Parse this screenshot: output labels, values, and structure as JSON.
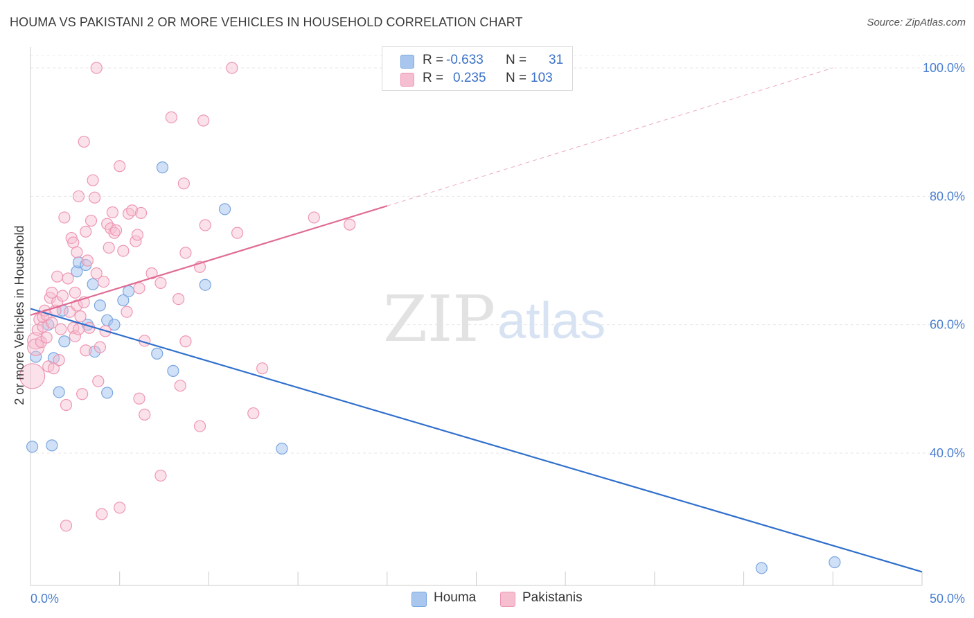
{
  "title": "HOUMA VS PAKISTANI 2 OR MORE VEHICLES IN HOUSEHOLD CORRELATION CHART",
  "source": "Source: ZipAtlas.com",
  "watermark": {
    "zip": "ZIP",
    "atlas": "atlas"
  },
  "legend": {
    "rows": [
      {
        "r_label": "R =",
        "r_value": "-0.633",
        "n_label": "N =",
        "n_value": "31",
        "color": "#a9c7ee",
        "border": "#7aa6e0"
      },
      {
        "r_label": "R =",
        "r_value": "0.235",
        "n_label": "N =",
        "n_value": "103",
        "color": "#f6bfd0",
        "border": "#ee96b2"
      }
    ]
  },
  "bottom_legend": [
    {
      "label": "Houma",
      "color": "#a9c7ee",
      "border": "#7aa6e0"
    },
    {
      "label": "Pakistanis",
      "color": "#f6bfd0",
      "border": "#ee96b2"
    }
  ],
  "chart_data": {
    "type": "scatter",
    "title": "HOUMA VS PAKISTANI 2 OR MORE VEHICLES IN HOUSEHOLD CORRELATION CHART",
    "xlabel": "",
    "ylabel": "2 or more Vehicles in Household",
    "xlim": [
      0,
      50
    ],
    "ylim": [
      20,
      102
    ],
    "x_tick_labels": [
      {
        "value": 0,
        "label": "0.0%"
      },
      {
        "value": 50,
        "label": "50.0%"
      }
    ],
    "y_tick_labels": [
      {
        "value": 100,
        "label": "100.0%"
      },
      {
        "value": 80,
        "label": "80.0%"
      },
      {
        "value": 60,
        "label": "60.0%"
      },
      {
        "value": 40,
        "label": "40.0%"
      }
    ],
    "grid": true,
    "legend_position": "top-center",
    "series": [
      {
        "name": "Houma",
        "color": "#7aa6e0",
        "fill": "#a9c7ee",
        "trend_color": "#2f6fcc",
        "trend": {
          "x1": 0,
          "y1": 62.5,
          "x2": 50,
          "y2": 21.5,
          "dashed_from": null
        },
        "points": [
          [
            0.3,
            55.0
          ],
          [
            0.1,
            41.0
          ],
          [
            1.2,
            41.2
          ],
          [
            1.0,
            60.0
          ],
          [
            1.3,
            54.8
          ],
          [
            1.6,
            49.5
          ],
          [
            1.8,
            62.2
          ],
          [
            1.9,
            57.4
          ],
          [
            2.6,
            68.3
          ],
          [
            2.7,
            69.7
          ],
          [
            3.1,
            69.3
          ],
          [
            3.2,
            60.0
          ],
          [
            3.5,
            66.3
          ],
          [
            3.6,
            55.8
          ],
          [
            3.9,
            63.0
          ],
          [
            4.3,
            49.4
          ],
          [
            4.3,
            60.7
          ],
          [
            4.7,
            60.0
          ],
          [
            5.2,
            63.8
          ],
          [
            5.5,
            65.2
          ],
          [
            7.1,
            55.5
          ],
          [
            7.4,
            84.5
          ],
          [
            8.0,
            52.8
          ],
          [
            9.8,
            66.2
          ],
          [
            10.9,
            78.0
          ],
          [
            14.1,
            40.7
          ],
          [
            41.0,
            22.1
          ],
          [
            45.1,
            23.0
          ]
        ]
      },
      {
        "name": "Pakistanis",
        "color": "#ee96b2",
        "fill": "#f6bfd0",
        "trend_color": "#e06b93",
        "trend": {
          "x1": 0,
          "y1": 61.5,
          "x2": 20,
          "y2": 78.5,
          "dash_x2": 45,
          "dash_y2": 100.0
        },
        "points": [
          [
            0.1,
            52.0
          ],
          [
            0.3,
            57.5
          ],
          [
            0.3,
            56.5
          ],
          [
            0.4,
            59.2
          ],
          [
            0.5,
            60.8
          ],
          [
            0.6,
            57.3
          ],
          [
            0.7,
            59.7
          ],
          [
            0.7,
            61.2
          ],
          [
            0.8,
            62.2
          ],
          [
            0.9,
            58.0
          ],
          [
            0.9,
            61.5
          ],
          [
            1.0,
            53.5
          ],
          [
            1.1,
            64.2
          ],
          [
            1.2,
            60.3
          ],
          [
            1.2,
            65.0
          ],
          [
            1.3,
            53.2
          ],
          [
            1.4,
            62.2
          ],
          [
            1.5,
            63.5
          ],
          [
            1.5,
            67.5
          ],
          [
            1.6,
            54.5
          ],
          [
            1.7,
            59.3
          ],
          [
            1.8,
            64.5
          ],
          [
            1.9,
            76.7
          ],
          [
            2.0,
            47.5
          ],
          [
            2.0,
            28.7
          ],
          [
            2.1,
            67.2
          ],
          [
            2.2,
            62.0
          ],
          [
            2.3,
            73.5
          ],
          [
            2.4,
            72.8
          ],
          [
            2.4,
            59.5
          ],
          [
            2.5,
            65.0
          ],
          [
            2.5,
            58.2
          ],
          [
            2.6,
            71.3
          ],
          [
            2.6,
            63.0
          ],
          [
            2.7,
            80.0
          ],
          [
            2.7,
            59.3
          ],
          [
            2.8,
            61.3
          ],
          [
            2.9,
            49.2
          ],
          [
            3.0,
            63.5
          ],
          [
            3.0,
            88.5
          ],
          [
            3.1,
            74.5
          ],
          [
            3.1,
            56.0
          ],
          [
            3.2,
            70.0
          ],
          [
            3.3,
            59.5
          ],
          [
            3.4,
            76.2
          ],
          [
            3.5,
            82.5
          ],
          [
            3.6,
            79.8
          ],
          [
            3.7,
            100.0
          ],
          [
            3.7,
            68.0
          ],
          [
            3.8,
            51.2
          ],
          [
            3.9,
            56.5
          ],
          [
            4.0,
            30.5
          ],
          [
            4.1,
            66.7
          ],
          [
            4.2,
            59.0
          ],
          [
            4.3,
            75.7
          ],
          [
            4.4,
            72.0
          ],
          [
            4.5,
            75.0
          ],
          [
            4.6,
            77.5
          ],
          [
            4.7,
            74.3
          ],
          [
            4.8,
            74.7
          ],
          [
            5.0,
            31.5
          ],
          [
            5.0,
            84.7
          ],
          [
            5.2,
            71.5
          ],
          [
            5.4,
            62.0
          ],
          [
            5.5,
            77.3
          ],
          [
            5.7,
            77.8
          ],
          [
            5.9,
            73.0
          ],
          [
            6.0,
            74.0
          ],
          [
            6.1,
            65.7
          ],
          [
            6.1,
            48.5
          ],
          [
            6.2,
            77.4
          ],
          [
            6.4,
            57.5
          ],
          [
            6.4,
            46.0
          ],
          [
            6.8,
            68.0
          ],
          [
            7.3,
            36.5
          ],
          [
            7.3,
            66.5
          ],
          [
            7.9,
            92.3
          ],
          [
            8.3,
            64.0
          ],
          [
            8.4,
            50.5
          ],
          [
            8.6,
            82.0
          ],
          [
            8.7,
            71.2
          ],
          [
            8.7,
            57.4
          ],
          [
            9.5,
            44.2
          ],
          [
            9.5,
            69.0
          ],
          [
            9.7,
            91.8
          ],
          [
            9.8,
            75.5
          ],
          [
            11.3,
            100.0
          ],
          [
            11.6,
            74.3
          ],
          [
            12.5,
            46.2
          ],
          [
            13.0,
            53.2
          ],
          [
            15.9,
            76.7
          ],
          [
            17.9,
            75.6
          ]
        ]
      }
    ]
  }
}
